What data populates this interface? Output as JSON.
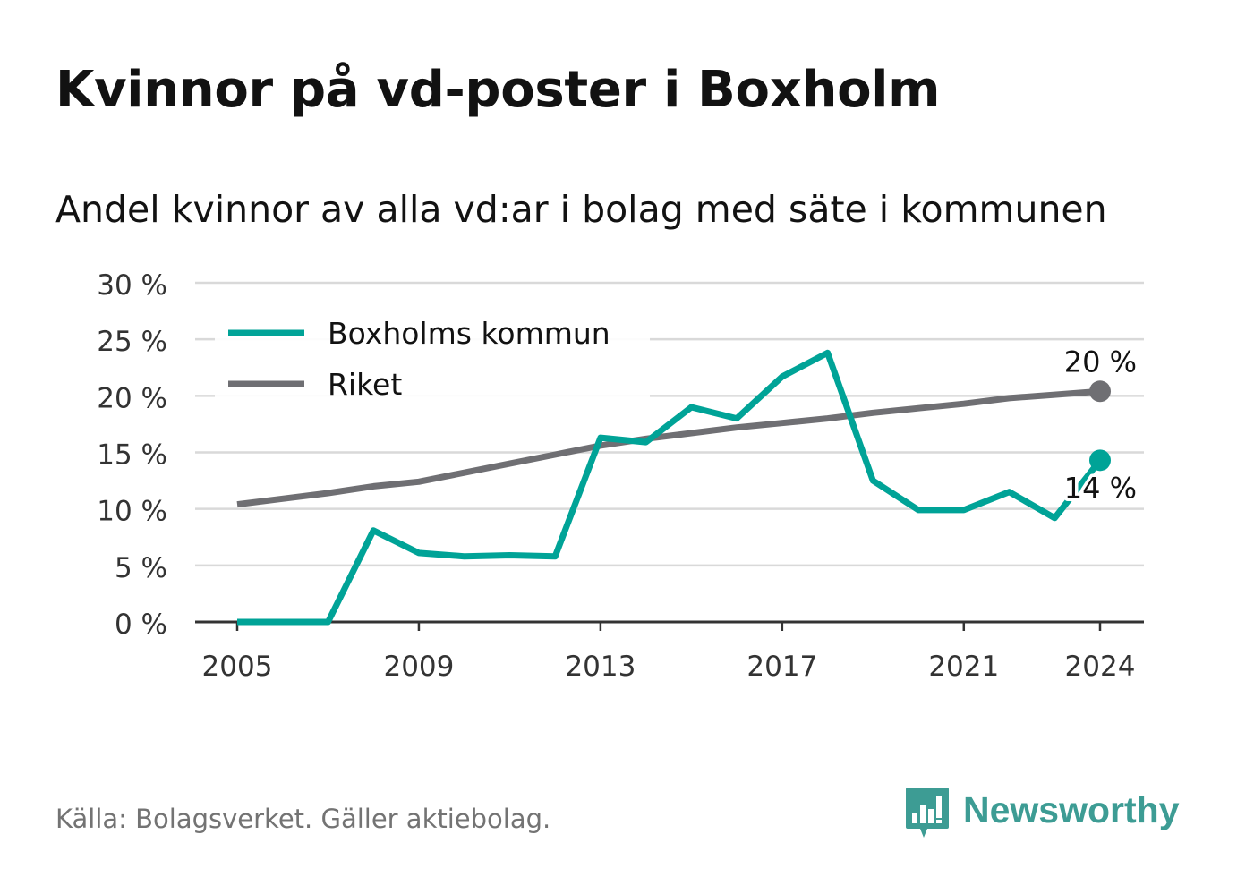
{
  "title": "Kvinnor på vd-poster i Boxholm",
  "subtitle": "Andel kvinnor av alla vd:ar i bolag med säte i kommunen",
  "source": "Källa: Bolagsverket. Gäller aktiebolag.",
  "brand": "Newsworthy",
  "colors": {
    "boxholm": "#00a397",
    "riket": "#6f6f73",
    "grid": "#d9d9d9",
    "axis": "#333333",
    "brand": "#3d9c94"
  },
  "chart_data": {
    "type": "line",
    "x": [
      2005,
      2006,
      2007,
      2008,
      2009,
      2010,
      2011,
      2012,
      2013,
      2014,
      2015,
      2016,
      2017,
      2018,
      2019,
      2020,
      2021,
      2022,
      2023,
      2024
    ],
    "series": [
      {
        "name": "Boxholms kommun",
        "color": "#00a397",
        "values": [
          0,
          0,
          0,
          8.1,
          6.1,
          5.8,
          5.9,
          5.8,
          16.3,
          15.9,
          19.0,
          18.0,
          21.7,
          23.8,
          12.5,
          9.9,
          9.9,
          11.5,
          9.2,
          14.3
        ],
        "end_label": "14 %"
      },
      {
        "name": "Riket",
        "color": "#6f6f73",
        "values": [
          10.4,
          10.9,
          11.4,
          12.0,
          12.4,
          13.2,
          14.0,
          14.8,
          15.6,
          16.2,
          16.7,
          17.2,
          17.6,
          18.0,
          18.5,
          18.9,
          19.3,
          19.8,
          20.1,
          20.4
        ],
        "end_label": "20 %"
      }
    ],
    "ylim": [
      0,
      30
    ],
    "y_ticks": [
      0,
      5,
      10,
      15,
      20,
      25,
      30
    ],
    "y_tick_labels": [
      "0 %",
      "5 %",
      "10 %",
      "15 %",
      "20 %",
      "25 %",
      "30 %"
    ],
    "x_ticks": [
      2005,
      2009,
      2013,
      2017,
      2021,
      2024
    ],
    "x_tick_labels": [
      "2005",
      "2009",
      "2013",
      "2017",
      "2021",
      "2024"
    ],
    "grid": true,
    "legend": "top-left"
  }
}
